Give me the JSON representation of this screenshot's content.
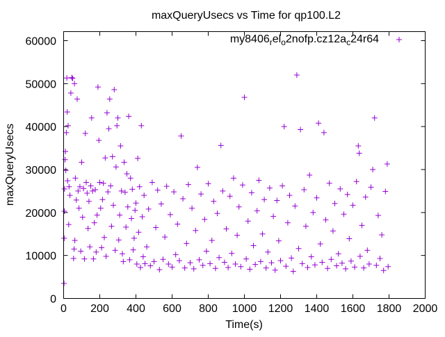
{
  "chart_data": {
    "type": "scatter",
    "title": "maxQueryUsecs vs Time for qp100.L2",
    "xlabel": "Time(s)",
    "ylabel": "maxQueryUsecs",
    "xlim": [
      0,
      2000
    ],
    "ylim": [
      0,
      62100
    ],
    "xticks": [
      0,
      200,
      400,
      600,
      800,
      1000,
      1200,
      1400,
      1600,
      1800,
      2000
    ],
    "yticks": [
      0,
      10000,
      20000,
      30000,
      40000,
      50000,
      60000
    ],
    "grid": false,
    "legend_position": "top-right",
    "series": [
      {
        "name": "my8406_rel_o2nofp.cz12a_c24r64",
        "color": "#9400d3",
        "marker": "plus",
        "points": [
          [
            2,
            3500
          ],
          [
            3,
            14000
          ],
          [
            4,
            20300
          ],
          [
            5,
            25500
          ],
          [
            8,
            32300
          ],
          [
            10,
            34200
          ],
          [
            12,
            29800
          ],
          [
            15,
            38600
          ],
          [
            18,
            51300
          ],
          [
            20,
            43400
          ],
          [
            22,
            27400
          ],
          [
            25,
            40200
          ],
          [
            28,
            17200
          ],
          [
            30,
            26000
          ],
          [
            35,
            24000
          ],
          [
            40,
            47800
          ],
          [
            45,
            51400
          ],
          [
            50,
            51200
          ],
          [
            55,
            9300
          ],
          [
            58,
            11500
          ],
          [
            60,
            50000
          ],
          [
            62,
            13500
          ],
          [
            65,
            28000
          ],
          [
            70,
            22900
          ],
          [
            75,
            46400
          ],
          [
            80,
            25000
          ],
          [
            85,
            21000
          ],
          [
            90,
            26000
          ],
          [
            95,
            11000
          ],
          [
            100,
            31700
          ],
          [
            105,
            18900
          ],
          [
            110,
            25600
          ],
          [
            115,
            9200
          ],
          [
            120,
            38400
          ],
          [
            125,
            27000
          ],
          [
            130,
            24500
          ],
          [
            135,
            16300
          ],
          [
            140,
            22600
          ],
          [
            145,
            12000
          ],
          [
            150,
            26200
          ],
          [
            155,
            42000
          ],
          [
            160,
            25000
          ],
          [
            165,
            9200
          ],
          [
            170,
            17600
          ],
          [
            175,
            25300
          ],
          [
            180,
            10800
          ],
          [
            185,
            19400
          ],
          [
            190,
            49200
          ],
          [
            195,
            36800
          ],
          [
            200,
            27000
          ],
          [
            205,
            21000
          ],
          [
            210,
            11800
          ],
          [
            215,
            23000
          ],
          [
            220,
            26800
          ],
          [
            225,
            14200
          ],
          [
            230,
            32700
          ],
          [
            235,
            9800
          ],
          [
            240,
            43200
          ],
          [
            245,
            24800
          ],
          [
            250,
            39500
          ],
          [
            255,
            46400
          ],
          [
            260,
            26200
          ],
          [
            265,
            16800
          ],
          [
            270,
            33000
          ],
          [
            275,
            21700
          ],
          [
            280,
            48600
          ],
          [
            285,
            11200
          ],
          [
            290,
            30600
          ],
          [
            295,
            40200
          ],
          [
            300,
            42000
          ],
          [
            305,
            13600
          ],
          [
            310,
            19400
          ],
          [
            315,
            35500
          ],
          [
            320,
            25000
          ],
          [
            325,
            10400
          ],
          [
            330,
            8600
          ],
          [
            335,
            31700
          ],
          [
            340,
            24700
          ],
          [
            345,
            16600
          ],
          [
            350,
            29000
          ],
          [
            355,
            21300
          ],
          [
            360,
            42400
          ],
          [
            365,
            9000
          ],
          [
            370,
            28000
          ],
          [
            375,
            18600
          ],
          [
            380,
            25400
          ],
          [
            385,
            11300
          ],
          [
            390,
            14000
          ],
          [
            395,
            20500
          ],
          [
            400,
            22200
          ],
          [
            405,
            8000
          ],
          [
            410,
            32600
          ],
          [
            415,
            15400
          ],
          [
            420,
            26000
          ],
          [
            425,
            7200
          ],
          [
            430,
            40200
          ],
          [
            435,
            19000
          ],
          [
            440,
            9700
          ],
          [
            445,
            24000
          ],
          [
            450,
            8100
          ],
          [
            460,
            12000
          ],
          [
            470,
            20800
          ],
          [
            480,
            7600
          ],
          [
            490,
            27000
          ],
          [
            500,
            8600
          ],
          [
            510,
            16500
          ],
          [
            520,
            25200
          ],
          [
            530,
            6700
          ],
          [
            540,
            22000
          ],
          [
            550,
            9100
          ],
          [
            560,
            14300
          ],
          [
            570,
            26100
          ],
          [
            580,
            8000
          ],
          [
            590,
            19500
          ],
          [
            600,
            7300
          ],
          [
            610,
            24800
          ],
          [
            620,
            10200
          ],
          [
            630,
            17300
          ],
          [
            640,
            8800
          ],
          [
            650,
            37800
          ],
          [
            660,
            23200
          ],
          [
            670,
            7100
          ],
          [
            680,
            12800
          ],
          [
            690,
            26500
          ],
          [
            700,
            8300
          ],
          [
            710,
            21000
          ],
          [
            720,
            6900
          ],
          [
            730,
            15800
          ],
          [
            740,
            30500
          ],
          [
            750,
            9000
          ],
          [
            760,
            24300
          ],
          [
            770,
            7700
          ],
          [
            780,
            18400
          ],
          [
            790,
            11000
          ],
          [
            800,
            26700
          ],
          [
            810,
            8100
          ],
          [
            820,
            13500
          ],
          [
            830,
            22600
          ],
          [
            840,
            7000
          ],
          [
            850,
            19800
          ],
          [
            860,
            9500
          ],
          [
            870,
            35600
          ],
          [
            880,
            25000
          ],
          [
            890,
            8400
          ],
          [
            900,
            16200
          ],
          [
            910,
            7200
          ],
          [
            920,
            23800
          ],
          [
            930,
            10500
          ],
          [
            940,
            28000
          ],
          [
            950,
            8000
          ],
          [
            960,
            14700
          ],
          [
            970,
            21300
          ],
          [
            980,
            7400
          ],
          [
            990,
            26400
          ],
          [
            1000,
            46800
          ],
          [
            1010,
            9200
          ],
          [
            1020,
            18000
          ],
          [
            1030,
            6800
          ],
          [
            1040,
            24600
          ],
          [
            1050,
            12300
          ],
          [
            1060,
            7900
          ],
          [
            1070,
            20400
          ],
          [
            1080,
            27500
          ],
          [
            1090,
            8600
          ],
          [
            1100,
            15000
          ],
          [
            1110,
            23000
          ],
          [
            1120,
            7100
          ],
          [
            1130,
            10800
          ],
          [
            1140,
            25700
          ],
          [
            1150,
            8300
          ],
          [
            1160,
            19100
          ],
          [
            1170,
            6600
          ],
          [
            1180,
            22800
          ],
          [
            1190,
            13400
          ],
          [
            1200,
            8800
          ],
          [
            1210,
            26200
          ],
          [
            1220,
            40000
          ],
          [
            1230,
            7500
          ],
          [
            1240,
            17600
          ],
          [
            1250,
            24000
          ],
          [
            1260,
            9400
          ],
          [
            1270,
            6300
          ],
          [
            1280,
            21500
          ],
          [
            1290,
            52000
          ],
          [
            1300,
            11600
          ],
          [
            1310,
            39300
          ],
          [
            1320,
            8100
          ],
          [
            1330,
            25300
          ],
          [
            1340,
            16800
          ],
          [
            1350,
            7200
          ],
          [
            1360,
            28700
          ],
          [
            1370,
            9700
          ],
          [
            1380,
            20000
          ],
          [
            1390,
            7800
          ],
          [
            1400,
            23400
          ],
          [
            1410,
            40800
          ],
          [
            1420,
            12700
          ],
          [
            1430,
            8400
          ],
          [
            1440,
            38600
          ],
          [
            1450,
            18300
          ],
          [
            1460,
            7000
          ],
          [
            1470,
            26800
          ],
          [
            1480,
            9100
          ],
          [
            1490,
            15700
          ],
          [
            1500,
            22100
          ],
          [
            1510,
            7600
          ],
          [
            1520,
            10400
          ],
          [
            1530,
            25500
          ],
          [
            1540,
            8200
          ],
          [
            1550,
            19600
          ],
          [
            1560,
            6900
          ],
          [
            1570,
            24200
          ],
          [
            1580,
            13900
          ],
          [
            1590,
            8700
          ],
          [
            1600,
            21700
          ],
          [
            1610,
            7300
          ],
          [
            1620,
            27200
          ],
          [
            1630,
            35500
          ],
          [
            1635,
            33800
          ],
          [
            1640,
            9800
          ],
          [
            1650,
            17000
          ],
          [
            1660,
            7100
          ],
          [
            1670,
            23600
          ],
          [
            1680,
            11200
          ],
          [
            1690,
            8000
          ],
          [
            1700,
            25900
          ],
          [
            1710,
            30000
          ],
          [
            1720,
            42000
          ],
          [
            1730,
            7700
          ],
          [
            1740,
            19300
          ],
          [
            1750,
            9300
          ],
          [
            1760,
            14800
          ],
          [
            1770,
            6500
          ],
          [
            1780,
            24900
          ],
          [
            1790,
            31300
          ],
          [
            1795,
            7400
          ]
        ]
      }
    ]
  }
}
